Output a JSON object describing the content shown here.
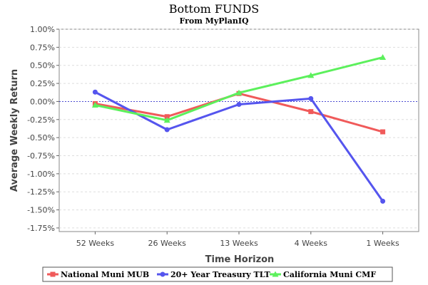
{
  "chart_data": {
    "type": "line",
    "title": "Bottom FUNDS",
    "subtitle": "From MyPlanIQ",
    "xlabel": "Time Horizon",
    "ylabel": "Average Weekly Return",
    "categories": [
      "52 Weeks",
      "26 Weeks",
      "13 Weeks",
      "4 Weeks",
      "1 Weeks"
    ],
    "ylim": [
      -1.8,
      1.0
    ],
    "yticks": [
      "1.00%",
      "0.75%",
      "0.50%",
      "0.25%",
      "0.00%",
      "-0.25%",
      "-0.50%",
      "-0.75%",
      "-1.00%",
      "-1.25%",
      "-1.50%",
      "-1.75%"
    ],
    "ytick_values": [
      1.0,
      0.75,
      0.5,
      0.25,
      0.0,
      -0.25,
      -0.5,
      -0.75,
      -1.0,
      -1.25,
      -1.5,
      -1.75
    ],
    "grid": true,
    "legend_position": "bottom",
    "series": [
      {
        "name": "National Muni MUB",
        "color": "#f05a5a",
        "marker": "square",
        "values": [
          -0.03,
          -0.21,
          0.11,
          -0.14,
          -0.42
        ]
      },
      {
        "name": "20+ Year Treasury TLT",
        "color": "#5555ee",
        "marker": "circle",
        "values": [
          0.13,
          -0.39,
          -0.04,
          0.04,
          -1.38
        ]
      },
      {
        "name": "California Muni CMF",
        "color": "#5cf05c",
        "marker": "triangle",
        "values": [
          -0.05,
          -0.26,
          0.12,
          0.36,
          0.61
        ]
      }
    ]
  }
}
